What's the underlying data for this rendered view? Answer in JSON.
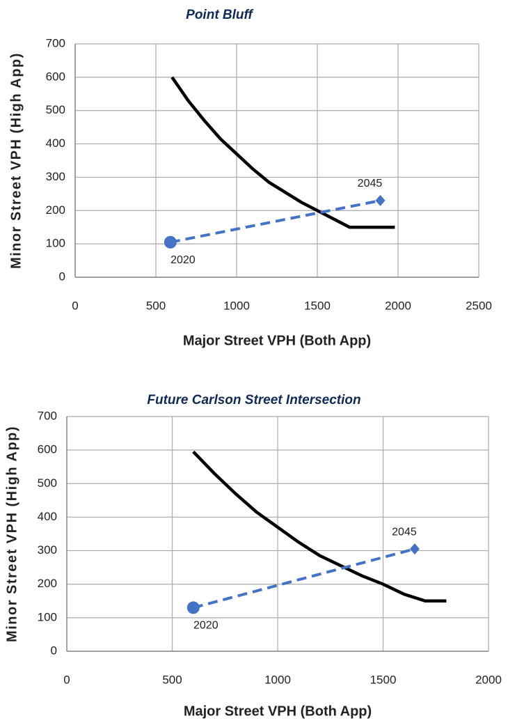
{
  "chart_data": [
    {
      "type": "line",
      "title": "Point Bluff",
      "xlabel": "Major Street VPH (Both App)",
      "ylabel": "Minor Street VPH (High App)",
      "xlim": [
        0,
        2500
      ],
      "xticks": [
        0,
        500,
        1000,
        1500,
        2000,
        2500
      ],
      "ylim": [
        0,
        700
      ],
      "yticks": [
        0,
        100,
        200,
        300,
        400,
        500,
        600,
        700
      ],
      "grid": true,
      "series": [
        {
          "color": "#000000",
          "x": [
            600,
            700,
            800,
            900,
            1000,
            1100,
            1200,
            1300,
            1400,
            1500,
            1600,
            1700,
            1800,
            1980
          ],
          "values": [
            600,
            530,
            470,
            415,
            370,
            325,
            285,
            255,
            225,
            200,
            175,
            150,
            150,
            150
          ]
        },
        {
          "color": "#4472c4",
          "dashed": true,
          "markers": [
            "circle",
            "diamond"
          ],
          "x": [
            590,
            1890
          ],
          "values": [
            105,
            230
          ],
          "point_labels": [
            "2020",
            "2045"
          ]
        }
      ]
    },
    {
      "type": "line",
      "title": "Future Carlson Street Intersection",
      "xlabel": "Major Street VPH (Both App)",
      "ylabel": "Minor Street VPH (High App)",
      "xlim": [
        0,
        2000
      ],
      "xticks": [
        0,
        500,
        1000,
        1500,
        2000
      ],
      "ylim": [
        0,
        700
      ],
      "yticks": [
        0,
        100,
        200,
        300,
        400,
        500,
        600,
        700
      ],
      "grid": true,
      "series": [
        {
          "color": "#000000",
          "x": [
            600,
            700,
            800,
            900,
            1000,
            1100,
            1200,
            1300,
            1400,
            1500,
            1600,
            1700,
            1800
          ],
          "values": [
            595,
            530,
            470,
            415,
            370,
            325,
            285,
            255,
            225,
            200,
            170,
            150,
            150
          ]
        },
        {
          "color": "#4472c4",
          "dashed": true,
          "markers": [
            "circle",
            "diamond"
          ],
          "x": [
            600,
            1650
          ],
          "values": [
            130,
            305
          ],
          "point_labels": [
            "2020",
            "2045"
          ]
        }
      ]
    }
  ]
}
